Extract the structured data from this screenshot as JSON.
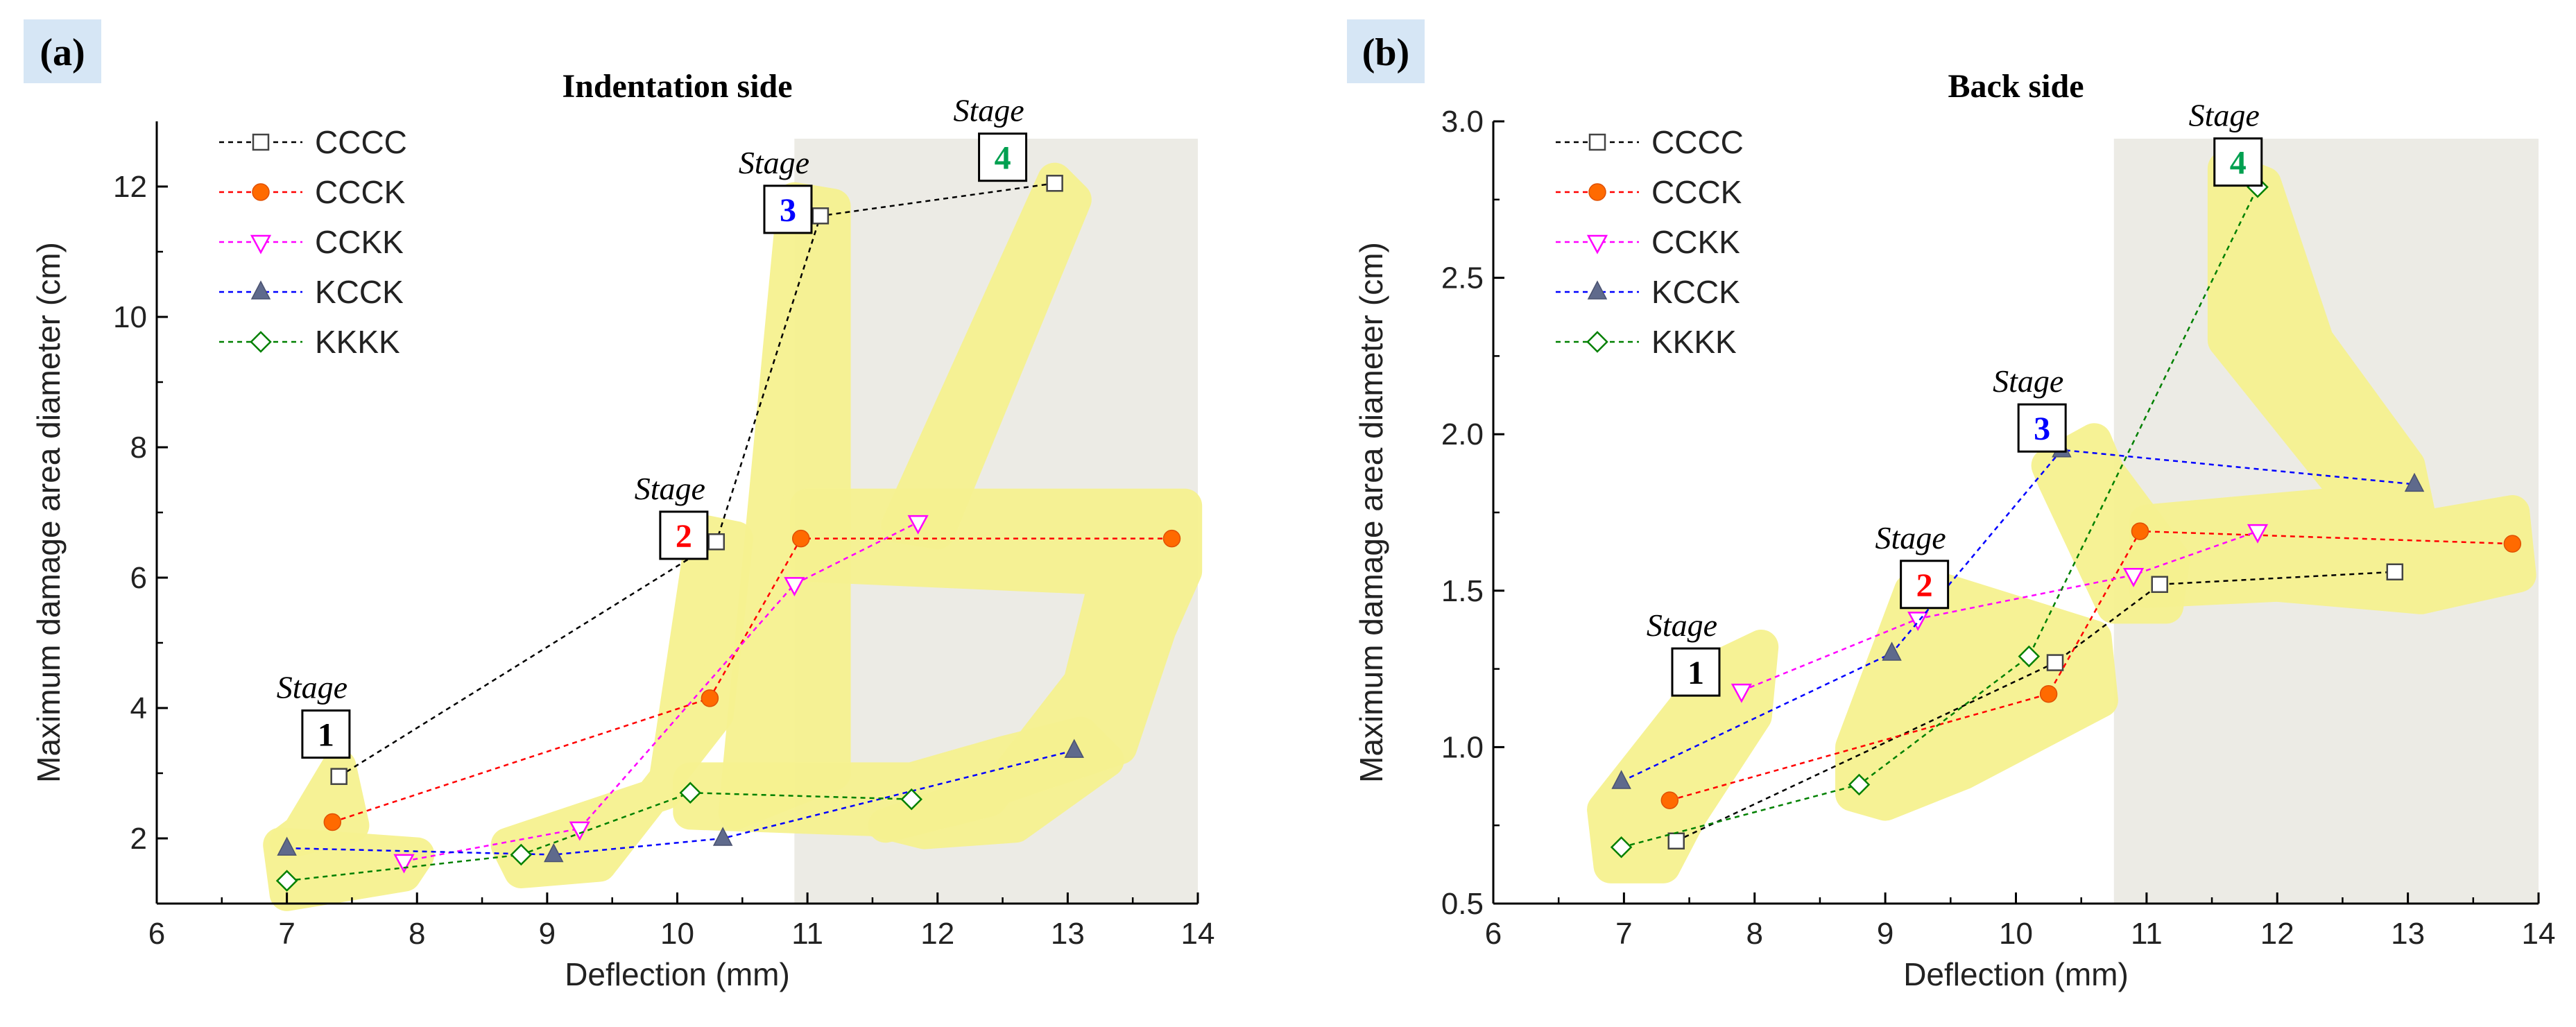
{
  "panel_labels": [
    "(a)",
    "(b)"
  ],
  "stage_word": "Stage",
  "chart_data": [
    {
      "type": "line",
      "panel": "(a)",
      "title": "Indentation side",
      "xlabel": "Deflection (mm)",
      "ylabel": "Maximum damage area diameter (cm)",
      "xlim": [
        6,
        14
      ],
      "ylim": [
        1,
        13
      ],
      "xticks": [
        6,
        7,
        8,
        9,
        10,
        11,
        12,
        13,
        14
      ],
      "yticks": [
        2,
        4,
        6,
        8,
        10,
        12
      ],
      "grid": false,
      "legend_position": "top-left",
      "shaded_region_x": [
        10.9,
        14
      ],
      "series": [
        {
          "name": "CCCC",
          "color": "#000000",
          "marker": "square-open",
          "x": [
            7.4,
            10.3,
            11.1,
            12.9
          ],
          "y": [
            2.95,
            6.55,
            11.55,
            12.05
          ]
        },
        {
          "name": "CCCK",
          "color": "#ff0000",
          "marker": "circle-filled",
          "x": [
            7.35,
            10.25,
            10.95,
            13.8
          ],
          "y": [
            2.25,
            4.15,
            6.6,
            6.6
          ]
        },
        {
          "name": "CCKK",
          "color": "#ff00ff",
          "marker": "triangle-down-open",
          "x": [
            7.9,
            9.25,
            10.9,
            11.85
          ],
          "y": [
            1.65,
            2.15,
            5.9,
            6.85
          ]
        },
        {
          "name": "KCCK",
          "color": "#0000ff",
          "marker": "triangle-up-filled",
          "x": [
            7.0,
            9.05,
            10.35,
            13.05
          ],
          "y": [
            1.85,
            1.75,
            2.0,
            3.35
          ]
        },
        {
          "name": "KKKK",
          "color": "#008000",
          "marker": "diamond-open",
          "x": [
            7.0,
            8.8,
            10.1,
            11.8
          ],
          "y": [
            1.35,
            1.75,
            2.7,
            2.6
          ]
        }
      ],
      "stages": [
        {
          "number": "1",
          "color": "#000000",
          "x": 7.3,
          "y": 3.6
        },
        {
          "number": "2",
          "color": "#ff0000",
          "x": 10.05,
          "y": 6.65
        },
        {
          "number": "3",
          "color": "#0000ff",
          "x": 10.85,
          "y": 11.65
        },
        {
          "number": "4",
          "color": "#00a050",
          "x": 12.5,
          "y": 12.45
        }
      ]
    },
    {
      "type": "line",
      "panel": "(b)",
      "title": "Back side",
      "xlabel": "Deflection (mm)",
      "ylabel": "Maximum damage area diameter (cm)",
      "xlim": [
        6,
        14
      ],
      "ylim": [
        0.5,
        3.0
      ],
      "xticks": [
        6,
        7,
        8,
        9,
        10,
        11,
        12,
        13,
        14
      ],
      "yticks": [
        0.5,
        1.0,
        1.5,
        2.0,
        2.5,
        3.0
      ],
      "grid": false,
      "legend_position": "top-left",
      "shaded_region_x": [
        10.75,
        14
      ],
      "series": [
        {
          "name": "CCCC",
          "color": "#000000",
          "marker": "square-open",
          "x": [
            7.4,
            10.3,
            11.1,
            12.9
          ],
          "y": [
            0.7,
            1.27,
            1.52,
            1.56
          ]
        },
        {
          "name": "CCCK",
          "color": "#ff0000",
          "marker": "circle-filled",
          "x": [
            7.35,
            10.25,
            10.95,
            13.8
          ],
          "y": [
            0.83,
            1.17,
            1.69,
            1.65
          ]
        },
        {
          "name": "CCKK",
          "color": "#ff00ff",
          "marker": "triangle-down-open",
          "x": [
            7.9,
            9.25,
            10.9,
            11.85
          ],
          "y": [
            1.18,
            1.41,
            1.55,
            1.69
          ]
        },
        {
          "name": "KCCK",
          "color": "#0000ff",
          "marker": "triangle-up-filled",
          "x": [
            6.98,
            9.05,
            10.35,
            13.05
          ],
          "y": [
            0.89,
            1.3,
            1.95,
            1.84
          ]
        },
        {
          "name": "KKKK",
          "color": "#008000",
          "marker": "diamond-open",
          "x": [
            6.98,
            8.8,
            10.1,
            11.85
          ],
          "y": [
            0.68,
            0.88,
            1.29,
            2.79
          ]
        }
      ],
      "stages": [
        {
          "number": "1",
          "color": "#000000",
          "x": 7.55,
          "y": 1.24
        },
        {
          "number": "2",
          "color": "#ff0000",
          "x": 9.3,
          "y": 1.52
        },
        {
          "number": "3",
          "color": "#0000ff",
          "x": 10.2,
          "y": 2.02
        },
        {
          "number": "4",
          "color": "#00a050",
          "x": 11.7,
          "y": 2.87
        }
      ]
    }
  ]
}
